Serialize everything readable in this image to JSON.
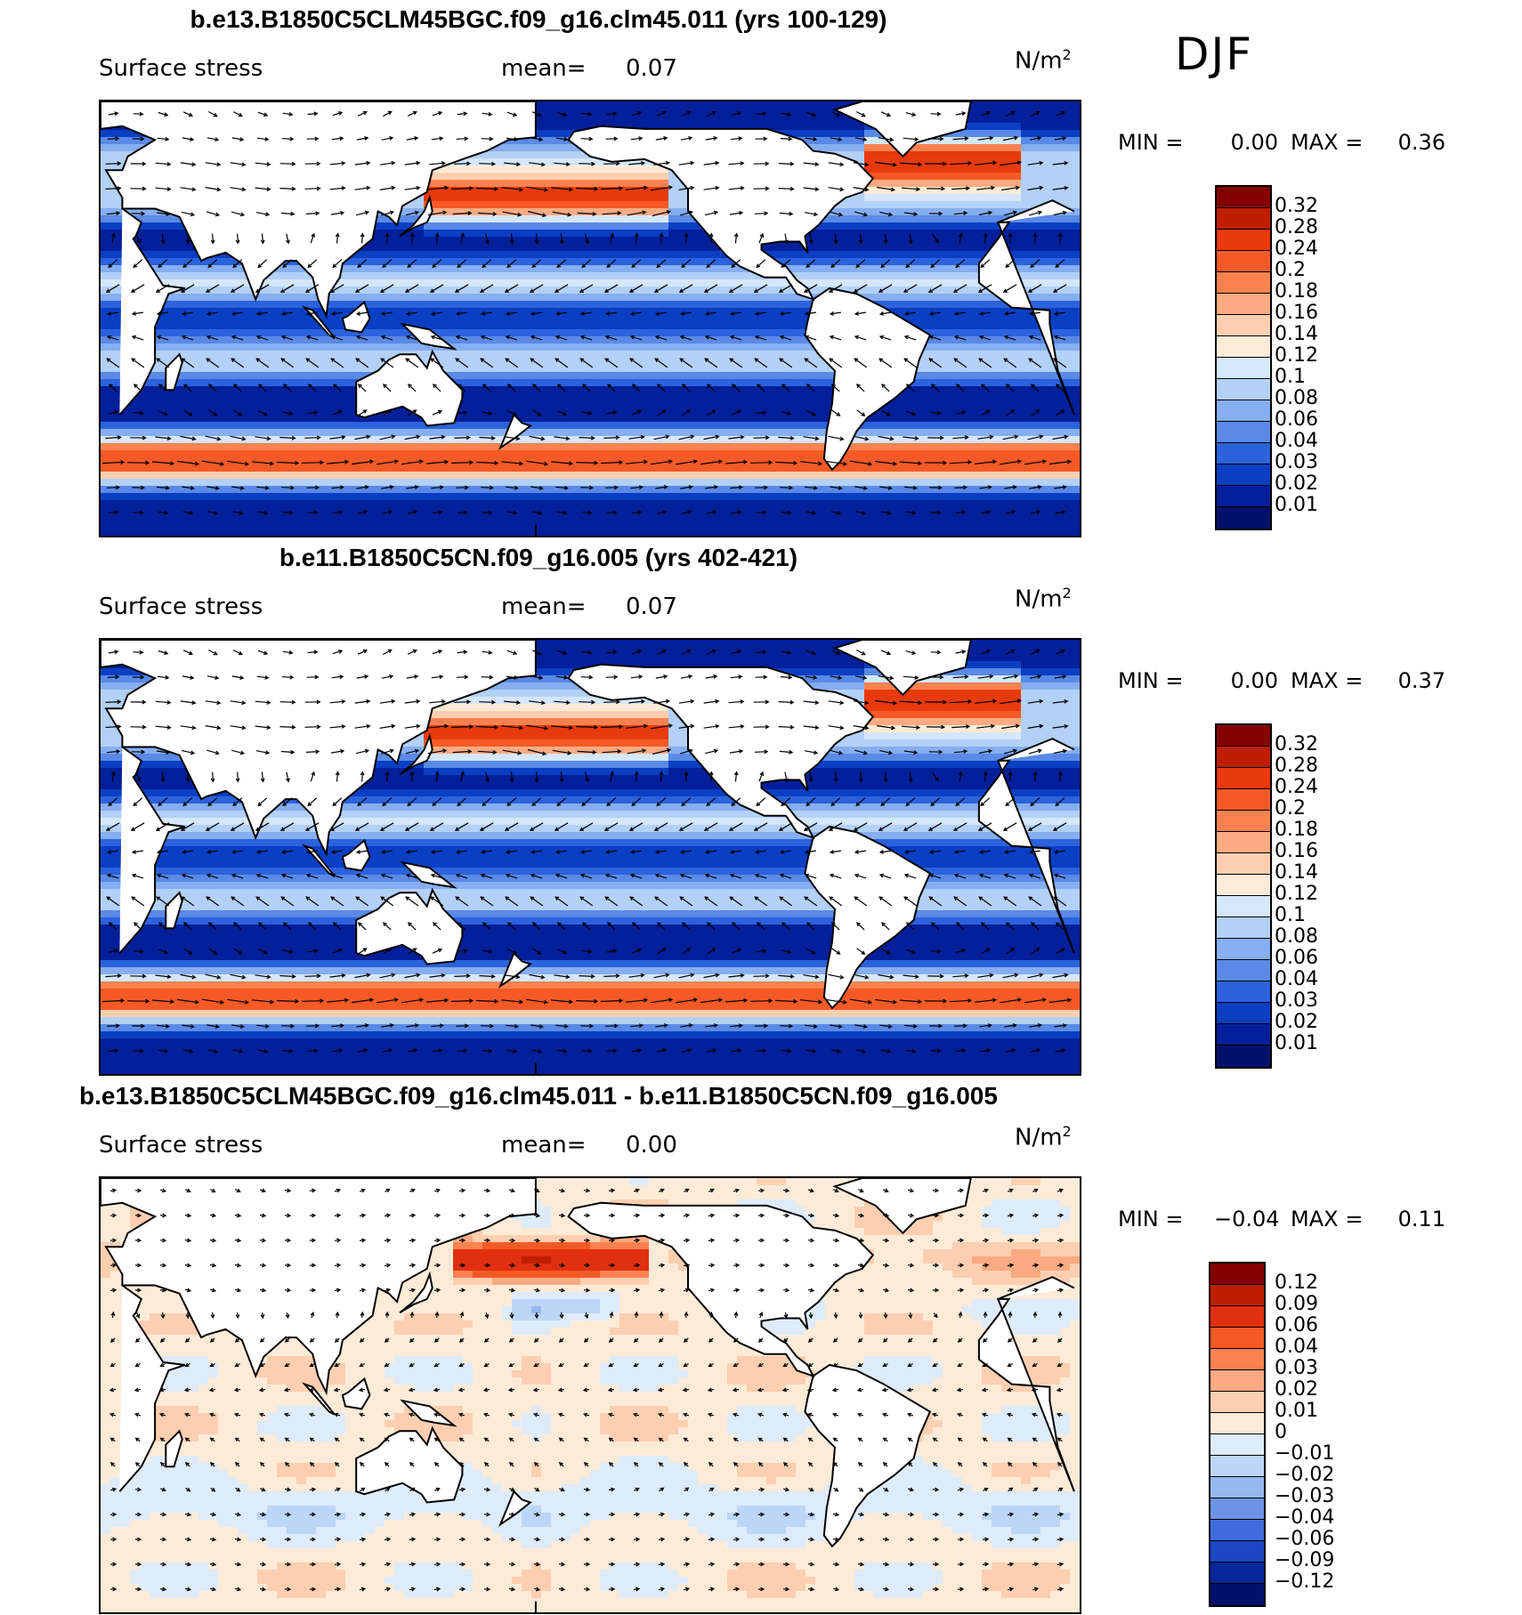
{
  "season": "DJF",
  "panels": [
    {
      "title": "b.e13.B1850C5CLM45BGC.f09_g16.clm45.011 (yrs 100-129)",
      "variable": "Surface stress",
      "mean_label": "mean=",
      "mean_value": "0.07",
      "units": "N/m",
      "units_exp": "2",
      "min_label": "MIN =",
      "min_value": "0.00",
      "max_label": "MAX =",
      "max_value": "0.36",
      "colorbar_labels": [
        "0.32",
        "0.28",
        "0.24",
        "0.2",
        "0.18",
        "0.16",
        "0.14",
        "0.12",
        "0.1",
        "0.08",
        "0.06",
        "0.04",
        "0.03",
        "0.02",
        "0.01"
      ],
      "colorbar_colors": [
        "#840000",
        "#bf1f00",
        "#e83a0c",
        "#f55a26",
        "#fa8250",
        "#fcaa82",
        "#fdcfb0",
        "#fdebd8",
        "#d5e7fa",
        "#b3d0f7",
        "#86aef0",
        "#5a8ae6",
        "#2c62dc",
        "#0a3fc4",
        "#031f9a",
        "#02116a"
      ],
      "field": "base"
    },
    {
      "title": "b.e11.B1850C5CN.f09_g16.005 (yrs 402-421)",
      "variable": "Surface stress",
      "mean_label": "mean=",
      "mean_value": "0.07",
      "units": "N/m",
      "units_exp": "2",
      "min_label": "MIN =",
      "min_value": "0.00",
      "max_label": "MAX =",
      "max_value": "0.37",
      "colorbar_labels": [
        "0.32",
        "0.28",
        "0.24",
        "0.2",
        "0.18",
        "0.16",
        "0.14",
        "0.12",
        "0.1",
        "0.08",
        "0.06",
        "0.04",
        "0.03",
        "0.02",
        "0.01"
      ],
      "colorbar_colors": [
        "#840000",
        "#bf1f00",
        "#e83a0c",
        "#f55a26",
        "#fa8250",
        "#fcaa82",
        "#fdcfb0",
        "#fdebd8",
        "#d5e7fa",
        "#b3d0f7",
        "#86aef0",
        "#5a8ae6",
        "#2c62dc",
        "#0a3fc4",
        "#031f9a",
        "#02116a"
      ],
      "field": "base"
    },
    {
      "title": "b.e13.B1850C5CLM45BGC.f09_g16.clm45.011 - b.e11.B1850C5CN.f09_g16.005",
      "variable": "Surface stress",
      "mean_label": "mean=",
      "mean_value": "0.00",
      "units": "N/m",
      "units_exp": "2",
      "min_label": "MIN =",
      "min_value": "−0.04",
      "max_label": "MAX =",
      "max_value": "0.11",
      "colorbar_labels": [
        "0.12",
        "0.09",
        "0.06",
        "0.04",
        "0.03",
        "0.02",
        "0.01",
        "0",
        "−0.01",
        "−0.02",
        "−0.03",
        "−0.04",
        "−0.06",
        "−0.09",
        "−0.12"
      ],
      "colorbar_colors": [
        "#840000",
        "#bf1f00",
        "#e03010",
        "#f55a26",
        "#fa8250",
        "#fcaa82",
        "#fdcfb0",
        "#fdebd8",
        "#deebfa",
        "#bdd5f7",
        "#96b8f0",
        "#6c93e6",
        "#3f6cdc",
        "#1b47c4",
        "#06279a",
        "#02116a"
      ],
      "field": "diff"
    }
  ]
}
